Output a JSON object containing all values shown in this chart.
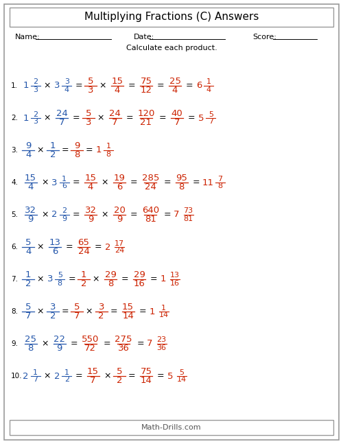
{
  "title": "Multiplying Fractions (C) Answers",
  "subtitle": "Calculate each product.",
  "name_label": "Name:",
  "date_label": "Date:",
  "score_label": "Score:",
  "footer": "Math-Drills.com",
  "bg_color": "#ffffff",
  "black": "#000000",
  "blue": "#2255aa",
  "red": "#cc2200",
  "problems": [
    {
      "num": "1.",
      "parts": [
        {
          "type": "mixed",
          "whole": "1",
          "num": "2",
          "den": "3",
          "color": "blue"
        },
        {
          "type": "op",
          "text": "×",
          "color": "black"
        },
        {
          "type": "mixed",
          "whole": "3",
          "num": "3",
          "den": "4",
          "color": "blue"
        },
        {
          "type": "op",
          "text": "=",
          "color": "black"
        },
        {
          "type": "frac",
          "num": "5",
          "den": "3",
          "color": "red"
        },
        {
          "type": "op",
          "text": "×",
          "color": "black"
        },
        {
          "type": "frac",
          "num": "15",
          "den": "4",
          "color": "red"
        },
        {
          "type": "op",
          "text": "=",
          "color": "black"
        },
        {
          "type": "frac",
          "num": "75",
          "den": "12",
          "color": "red"
        },
        {
          "type": "op",
          "text": "=",
          "color": "black"
        },
        {
          "type": "frac",
          "num": "25",
          "den": "4",
          "color": "red"
        },
        {
          "type": "op",
          "text": "=",
          "color": "black"
        },
        {
          "type": "mixed",
          "whole": "6",
          "num": "1",
          "den": "4",
          "color": "red"
        }
      ]
    },
    {
      "num": "2.",
      "parts": [
        {
          "type": "mixed",
          "whole": "1",
          "num": "2",
          "den": "3",
          "color": "blue"
        },
        {
          "type": "op",
          "text": "×",
          "color": "black"
        },
        {
          "type": "frac",
          "num": "24",
          "den": "7",
          "color": "blue"
        },
        {
          "type": "op",
          "text": "=",
          "color": "black"
        },
        {
          "type": "frac",
          "num": "5",
          "den": "3",
          "color": "red"
        },
        {
          "type": "op",
          "text": "×",
          "color": "black"
        },
        {
          "type": "frac",
          "num": "24",
          "den": "7",
          "color": "red"
        },
        {
          "type": "op",
          "text": "=",
          "color": "black"
        },
        {
          "type": "frac",
          "num": "120",
          "den": "21",
          "color": "red"
        },
        {
          "type": "op",
          "text": "=",
          "color": "black"
        },
        {
          "type": "frac",
          "num": "40",
          "den": "7",
          "color": "red"
        },
        {
          "type": "op",
          "text": "=",
          "color": "black"
        },
        {
          "type": "mixed",
          "whole": "5",
          "num": "5",
          "den": "7",
          "color": "red"
        }
      ]
    },
    {
      "num": "3.",
      "parts": [
        {
          "type": "frac",
          "num": "9",
          "den": "4",
          "color": "blue"
        },
        {
          "type": "op",
          "text": "×",
          "color": "black"
        },
        {
          "type": "frac",
          "num": "1",
          "den": "2",
          "color": "blue"
        },
        {
          "type": "op",
          "text": "=",
          "color": "black"
        },
        {
          "type": "frac",
          "num": "9",
          "den": "8",
          "color": "red"
        },
        {
          "type": "op",
          "text": "=",
          "color": "black"
        },
        {
          "type": "mixed",
          "whole": "1",
          "num": "1",
          "den": "8",
          "color": "red"
        }
      ]
    },
    {
      "num": "4.",
      "parts": [
        {
          "type": "frac",
          "num": "15",
          "den": "4",
          "color": "blue"
        },
        {
          "type": "op",
          "text": "×",
          "color": "black"
        },
        {
          "type": "mixed",
          "whole": "3",
          "num": "1",
          "den": "6",
          "color": "blue"
        },
        {
          "type": "op",
          "text": "=",
          "color": "black"
        },
        {
          "type": "frac",
          "num": "15",
          "den": "4",
          "color": "red"
        },
        {
          "type": "op",
          "text": "×",
          "color": "black"
        },
        {
          "type": "frac",
          "num": "19",
          "den": "6",
          "color": "red"
        },
        {
          "type": "op",
          "text": "=",
          "color": "black"
        },
        {
          "type": "frac",
          "num": "285",
          "den": "24",
          "color": "red"
        },
        {
          "type": "op",
          "text": "=",
          "color": "black"
        },
        {
          "type": "frac",
          "num": "95",
          "den": "8",
          "color": "red"
        },
        {
          "type": "op",
          "text": "=",
          "color": "black"
        },
        {
          "type": "mixed",
          "whole": "11",
          "num": "7",
          "den": "8",
          "color": "red"
        }
      ]
    },
    {
      "num": "5.",
      "parts": [
        {
          "type": "frac",
          "num": "32",
          "den": "9",
          "color": "blue"
        },
        {
          "type": "op",
          "text": "×",
          "color": "black"
        },
        {
          "type": "mixed",
          "whole": "2",
          "num": "2",
          "den": "9",
          "color": "blue"
        },
        {
          "type": "op",
          "text": "=",
          "color": "black"
        },
        {
          "type": "frac",
          "num": "32",
          "den": "9",
          "color": "red"
        },
        {
          "type": "op",
          "text": "×",
          "color": "black"
        },
        {
          "type": "frac",
          "num": "20",
          "den": "9",
          "color": "red"
        },
        {
          "type": "op",
          "text": "=",
          "color": "black"
        },
        {
          "type": "frac",
          "num": "640",
          "den": "81",
          "color": "red"
        },
        {
          "type": "op",
          "text": "=",
          "color": "black"
        },
        {
          "type": "mixed",
          "whole": "7",
          "num": "73",
          "den": "81",
          "color": "red"
        }
      ]
    },
    {
      "num": "6.",
      "parts": [
        {
          "type": "frac",
          "num": "5",
          "den": "4",
          "color": "blue"
        },
        {
          "type": "op",
          "text": "×",
          "color": "black"
        },
        {
          "type": "frac",
          "num": "13",
          "den": "6",
          "color": "blue"
        },
        {
          "type": "op",
          "text": "=",
          "color": "black"
        },
        {
          "type": "frac",
          "num": "65",
          "den": "24",
          "color": "red"
        },
        {
          "type": "op",
          "text": "=",
          "color": "black"
        },
        {
          "type": "mixed",
          "whole": "2",
          "num": "17",
          "den": "24",
          "color": "red"
        }
      ]
    },
    {
      "num": "7.",
      "parts": [
        {
          "type": "frac",
          "num": "1",
          "den": "2",
          "color": "blue"
        },
        {
          "type": "op",
          "text": "×",
          "color": "black"
        },
        {
          "type": "mixed",
          "whole": "3",
          "num": "5",
          "den": "8",
          "color": "blue"
        },
        {
          "type": "op",
          "text": "=",
          "color": "black"
        },
        {
          "type": "frac",
          "num": "1",
          "den": "2",
          "color": "red"
        },
        {
          "type": "op",
          "text": "×",
          "color": "black"
        },
        {
          "type": "frac",
          "num": "29",
          "den": "8",
          "color": "red"
        },
        {
          "type": "op",
          "text": "=",
          "color": "black"
        },
        {
          "type": "frac",
          "num": "29",
          "den": "16",
          "color": "red"
        },
        {
          "type": "op",
          "text": "=",
          "color": "black"
        },
        {
          "type": "mixed",
          "whole": "1",
          "num": "13",
          "den": "16",
          "color": "red"
        }
      ]
    },
    {
      "num": "8.",
      "parts": [
        {
          "type": "frac",
          "num": "5",
          "den": "7",
          "color": "blue"
        },
        {
          "type": "op",
          "text": "×",
          "color": "black"
        },
        {
          "type": "frac",
          "num": "3",
          "den": "2",
          "color": "blue"
        },
        {
          "type": "op",
          "text": "=",
          "color": "black"
        },
        {
          "type": "frac",
          "num": "5",
          "den": "7",
          "color": "red"
        },
        {
          "type": "op",
          "text": "×",
          "color": "black"
        },
        {
          "type": "frac",
          "num": "3",
          "den": "2",
          "color": "red"
        },
        {
          "type": "op",
          "text": "=",
          "color": "black"
        },
        {
          "type": "frac",
          "num": "15",
          "den": "14",
          "color": "red"
        },
        {
          "type": "op",
          "text": "=",
          "color": "black"
        },
        {
          "type": "mixed",
          "whole": "1",
          "num": "1",
          "den": "14",
          "color": "red"
        }
      ]
    },
    {
      "num": "9.",
      "parts": [
        {
          "type": "frac",
          "num": "25",
          "den": "8",
          "color": "blue"
        },
        {
          "type": "op",
          "text": "×",
          "color": "black"
        },
        {
          "type": "frac",
          "num": "22",
          "den": "9",
          "color": "blue"
        },
        {
          "type": "op",
          "text": "=",
          "color": "black"
        },
        {
          "type": "frac",
          "num": "550",
          "den": "72",
          "color": "red"
        },
        {
          "type": "op",
          "text": "=",
          "color": "black"
        },
        {
          "type": "frac",
          "num": "275",
          "den": "36",
          "color": "red"
        },
        {
          "type": "op",
          "text": "=",
          "color": "black"
        },
        {
          "type": "mixed",
          "whole": "7",
          "num": "23",
          "den": "36",
          "color": "red"
        }
      ]
    },
    {
      "num": "10.",
      "parts": [
        {
          "type": "mixed",
          "whole": "2",
          "num": "1",
          "den": "7",
          "color": "blue"
        },
        {
          "type": "op",
          "text": "×",
          "color": "black"
        },
        {
          "type": "mixed",
          "whole": "2",
          "num": "1",
          "den": "2",
          "color": "blue"
        },
        {
          "type": "op",
          "text": "=",
          "color": "black"
        },
        {
          "type": "frac",
          "num": "15",
          "den": "7",
          "color": "red"
        },
        {
          "type": "op",
          "text": "×",
          "color": "black"
        },
        {
          "type": "frac",
          "num": "5",
          "den": "2",
          "color": "red"
        },
        {
          "type": "op",
          "text": "=",
          "color": "black"
        },
        {
          "type": "frac",
          "num": "75",
          "den": "14",
          "color": "red"
        },
        {
          "type": "op",
          "text": "=",
          "color": "black"
        },
        {
          "type": "mixed",
          "whole": "5",
          "num": "5",
          "den": "14",
          "color": "red"
        }
      ]
    }
  ]
}
